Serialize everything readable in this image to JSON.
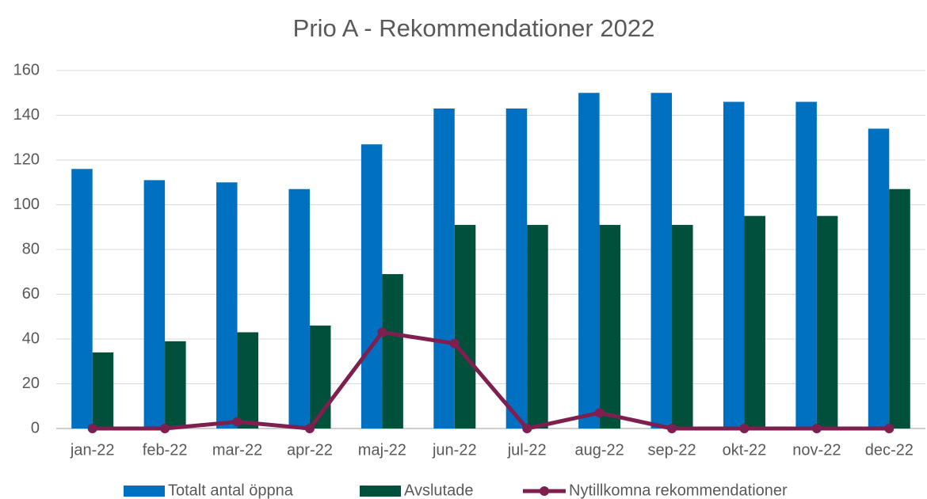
{
  "chart_data": {
    "type": "bar",
    "title": "Prio A - Rekommendationer 2022",
    "categories": [
      "jan-22",
      "feb-22",
      "mar-22",
      "apr-22",
      "maj-22",
      "jun-22",
      "jul-22",
      "aug-22",
      "sep-22",
      "okt-22",
      "nov-22",
      "dec-22"
    ],
    "series": [
      {
        "name": "Totalt antal öppna",
        "color": "#0070c0",
        "type": "bar",
        "values": [
          116,
          111,
          110,
          107,
          127,
          143,
          143,
          150,
          150,
          146,
          146,
          134
        ]
      },
      {
        "name": "Avslutade",
        "color": "#00503c",
        "type": "bar",
        "values": [
          34,
          39,
          43,
          46,
          69,
          91,
          91,
          91,
          91,
          95,
          95,
          107
        ]
      },
      {
        "name": "Nytillkomna rekommendationer",
        "color": "#7f1f4f",
        "type": "line",
        "values": [
          0,
          0,
          3,
          0,
          43,
          38,
          0,
          7,
          0,
          0,
          0,
          0
        ]
      }
    ],
    "ylim": [
      0,
      160
    ],
    "yticks": [
      0,
      20,
      40,
      60,
      80,
      100,
      120,
      140,
      160
    ],
    "grid": true,
    "legend": "bottom"
  }
}
